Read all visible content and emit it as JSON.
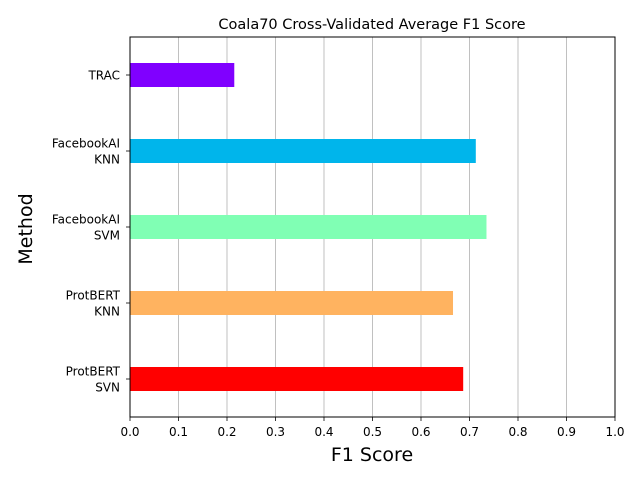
{
  "chart_data": {
    "type": "bar",
    "orientation": "horizontal",
    "title": "Coala70 Cross-Validated Average F1 Score",
    "xlabel": "F1 Score",
    "ylabel": "Method",
    "xlim": [
      0.0,
      1.0
    ],
    "xticks": [
      "0.0",
      "0.1",
      "0.2",
      "0.3",
      "0.4",
      "0.5",
      "0.6",
      "0.7",
      "0.8",
      "0.9",
      "1.0"
    ],
    "grid": "vertical",
    "categories": [
      [
        "TRAC"
      ],
      [
        "FacebookAI",
        "KNN"
      ],
      [
        "FacebookAI",
        "SVM"
      ],
      [
        "ProtBERT",
        "KNN"
      ],
      [
        "ProtBERT",
        "SVN"
      ]
    ],
    "values": [
      0.215,
      0.713,
      0.735,
      0.666,
      0.687
    ],
    "colors": [
      "#8000ff",
      "#00b5eb",
      "#80ffb4",
      "#ffb360",
      "#ff0000"
    ]
  }
}
